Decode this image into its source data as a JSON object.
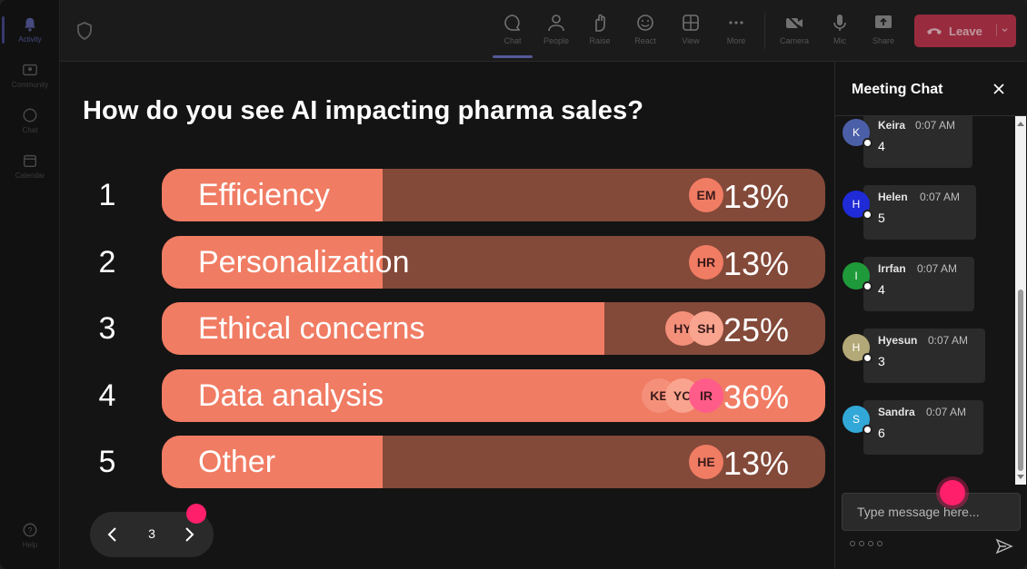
{
  "rail": [
    {
      "label": "Activity",
      "icon": "bell-icon",
      "active": true
    },
    {
      "label": "Community",
      "icon": "community-icon"
    },
    {
      "label": "Chat",
      "icon": "chat-icon"
    },
    {
      "label": "Calendar",
      "icon": "calendar-icon"
    },
    {
      "label": "Help",
      "icon": "help-icon"
    }
  ],
  "toolbar": {
    "items": [
      {
        "label": "Chat",
        "icon": "chat-icon",
        "active": true
      },
      {
        "label": "People",
        "icon": "people-icon"
      },
      {
        "label": "Raise",
        "icon": "raise-hand-icon"
      },
      {
        "label": "React",
        "icon": "react-icon"
      },
      {
        "label": "View",
        "icon": "view-icon"
      },
      {
        "label": "More",
        "icon": "more-icon"
      },
      {
        "label": "Camera",
        "icon": "camera-icon"
      },
      {
        "label": "Mic",
        "icon": "mic-icon"
      },
      {
        "label": "Share",
        "icon": "share-icon"
      }
    ],
    "leave_label": "Leave"
  },
  "poll": {
    "question": "How do you see AI impacting pharma sales?",
    "options": [
      {
        "num": "1",
        "label": "Efficiency",
        "percent_label": "13%",
        "percent": 13,
        "fill": 0.333,
        "avatars": [
          "EM"
        ]
      },
      {
        "num": "2",
        "label": "Personalization",
        "percent_label": "13%",
        "percent": 13,
        "fill": 0.333,
        "avatars": [
          "HR"
        ]
      },
      {
        "num": "3",
        "label": "Ethical concerns",
        "percent_label": "25%",
        "percent": 25,
        "fill": 0.667,
        "avatars": [
          "HY",
          "SH"
        ]
      },
      {
        "num": "4",
        "label": "Data analysis",
        "percent_label": "36%",
        "percent": 36,
        "fill": 1.0,
        "avatars": [
          "KE",
          "YO",
          "IR"
        ]
      },
      {
        "num": "5",
        "label": "Other",
        "percent_label": "13%",
        "percent": 13,
        "fill": 0.333,
        "avatars": [
          "HE"
        ]
      }
    ]
  },
  "pager": {
    "page": "3"
  },
  "chat": {
    "title": "Meeting Chat",
    "messages": [
      {
        "initial": "K",
        "name": "Keira",
        "time": "0:07 AM",
        "text": "4",
        "color": "#4b5fa8"
      },
      {
        "initial": "H",
        "name": "Helen",
        "time": "0:07 AM",
        "text": "5",
        "color": "#1f2bd6"
      },
      {
        "initial": "I",
        "name": "Irrfan",
        "time": "0:07 AM",
        "text": "4",
        "color": "#1f9a3a"
      },
      {
        "initial": "H",
        "name": "Hyesun",
        "time": "0:07 AM",
        "text": "3",
        "color": "#b3a877"
      },
      {
        "initial": "S",
        "name": "Sandra",
        "time": "0:07 AM",
        "text": "6",
        "color": "#32a8d8"
      }
    ],
    "composer_placeholder": "Type message here..."
  },
  "colors": {
    "bar_fill": "#f07c63",
    "bar_track": "#834939",
    "leave": "#c4314b",
    "accent": "#7b83eb",
    "pointer": "#ff1f6a"
  }
}
